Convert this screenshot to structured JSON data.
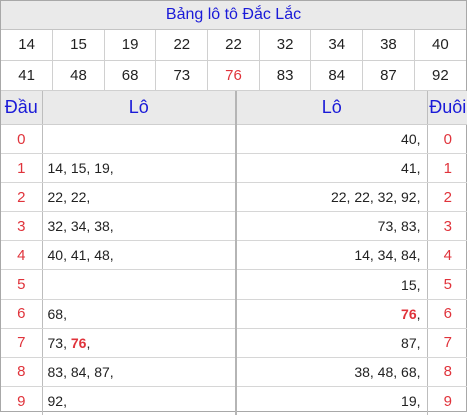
{
  "title": "Bảng lô tô Đắc Lắc",
  "numbers": [
    [
      {
        "v": "14",
        "hl": false
      },
      {
        "v": "15",
        "hl": false
      },
      {
        "v": "19",
        "hl": false
      },
      {
        "v": "22",
        "hl": false
      },
      {
        "v": "22",
        "hl": false
      },
      {
        "v": "32",
        "hl": false
      },
      {
        "v": "34",
        "hl": false
      },
      {
        "v": "38",
        "hl": false
      },
      {
        "v": "40",
        "hl": false
      }
    ],
    [
      {
        "v": "41",
        "hl": false
      },
      {
        "v": "48",
        "hl": false
      },
      {
        "v": "68",
        "hl": false
      },
      {
        "v": "73",
        "hl": false
      },
      {
        "v": "76",
        "hl": true
      },
      {
        "v": "83",
        "hl": false
      },
      {
        "v": "84",
        "hl": false
      },
      {
        "v": "87",
        "hl": false
      },
      {
        "v": "92",
        "hl": false
      }
    ]
  ],
  "headers": {
    "dau": "Đầu",
    "lo_left": "Lô",
    "lo_right": "Lô",
    "duoi": "Đuôi"
  },
  "rows": [
    {
      "digit": "0",
      "left": [],
      "right": [
        {
          "t": "40,",
          "hl": false
        }
      ]
    },
    {
      "digit": "1",
      "left": [
        {
          "t": "14, 15, 19,",
          "hl": false
        }
      ],
      "right": [
        {
          "t": "41,",
          "hl": false
        }
      ]
    },
    {
      "digit": "2",
      "left": [
        {
          "t": "22, 22,",
          "hl": false
        }
      ],
      "right": [
        {
          "t": "22, 22, 32, 92,",
          "hl": false
        }
      ]
    },
    {
      "digit": "3",
      "left": [
        {
          "t": "32, 34, 38,",
          "hl": false
        }
      ],
      "right": [
        {
          "t": "73, 83,",
          "hl": false
        }
      ]
    },
    {
      "digit": "4",
      "left": [
        {
          "t": "40, 41, 48,",
          "hl": false
        }
      ],
      "right": [
        {
          "t": "14, 34, 84,",
          "hl": false
        }
      ]
    },
    {
      "digit": "5",
      "left": [],
      "right": [
        {
          "t": "15,",
          "hl": false
        }
      ]
    },
    {
      "digit": "6",
      "left": [
        {
          "t": "68,",
          "hl": false
        }
      ],
      "right": [
        {
          "t": "76",
          "hl": true
        },
        {
          "t": ",",
          "hl": false
        }
      ]
    },
    {
      "digit": "7",
      "left": [
        {
          "t": "73, ",
          "hl": false
        },
        {
          "t": "76",
          "hl": true
        },
        {
          "t": ",",
          "hl": false
        }
      ],
      "right": [
        {
          "t": "87,",
          "hl": false
        }
      ]
    },
    {
      "digit": "8",
      "left": [
        {
          "t": "83, 84, 87,",
          "hl": false
        }
      ],
      "right": [
        {
          "t": "38, 48, 68,",
          "hl": false
        }
      ]
    },
    {
      "digit": "9",
      "left": [
        {
          "t": "92,",
          "hl": false
        }
      ],
      "right": [
        {
          "t": "19,",
          "hl": false
        }
      ]
    }
  ],
  "colors": {
    "title": "#1a1ad8",
    "highlight": "#e0333b",
    "header_bg": "#eaeaea"
  }
}
